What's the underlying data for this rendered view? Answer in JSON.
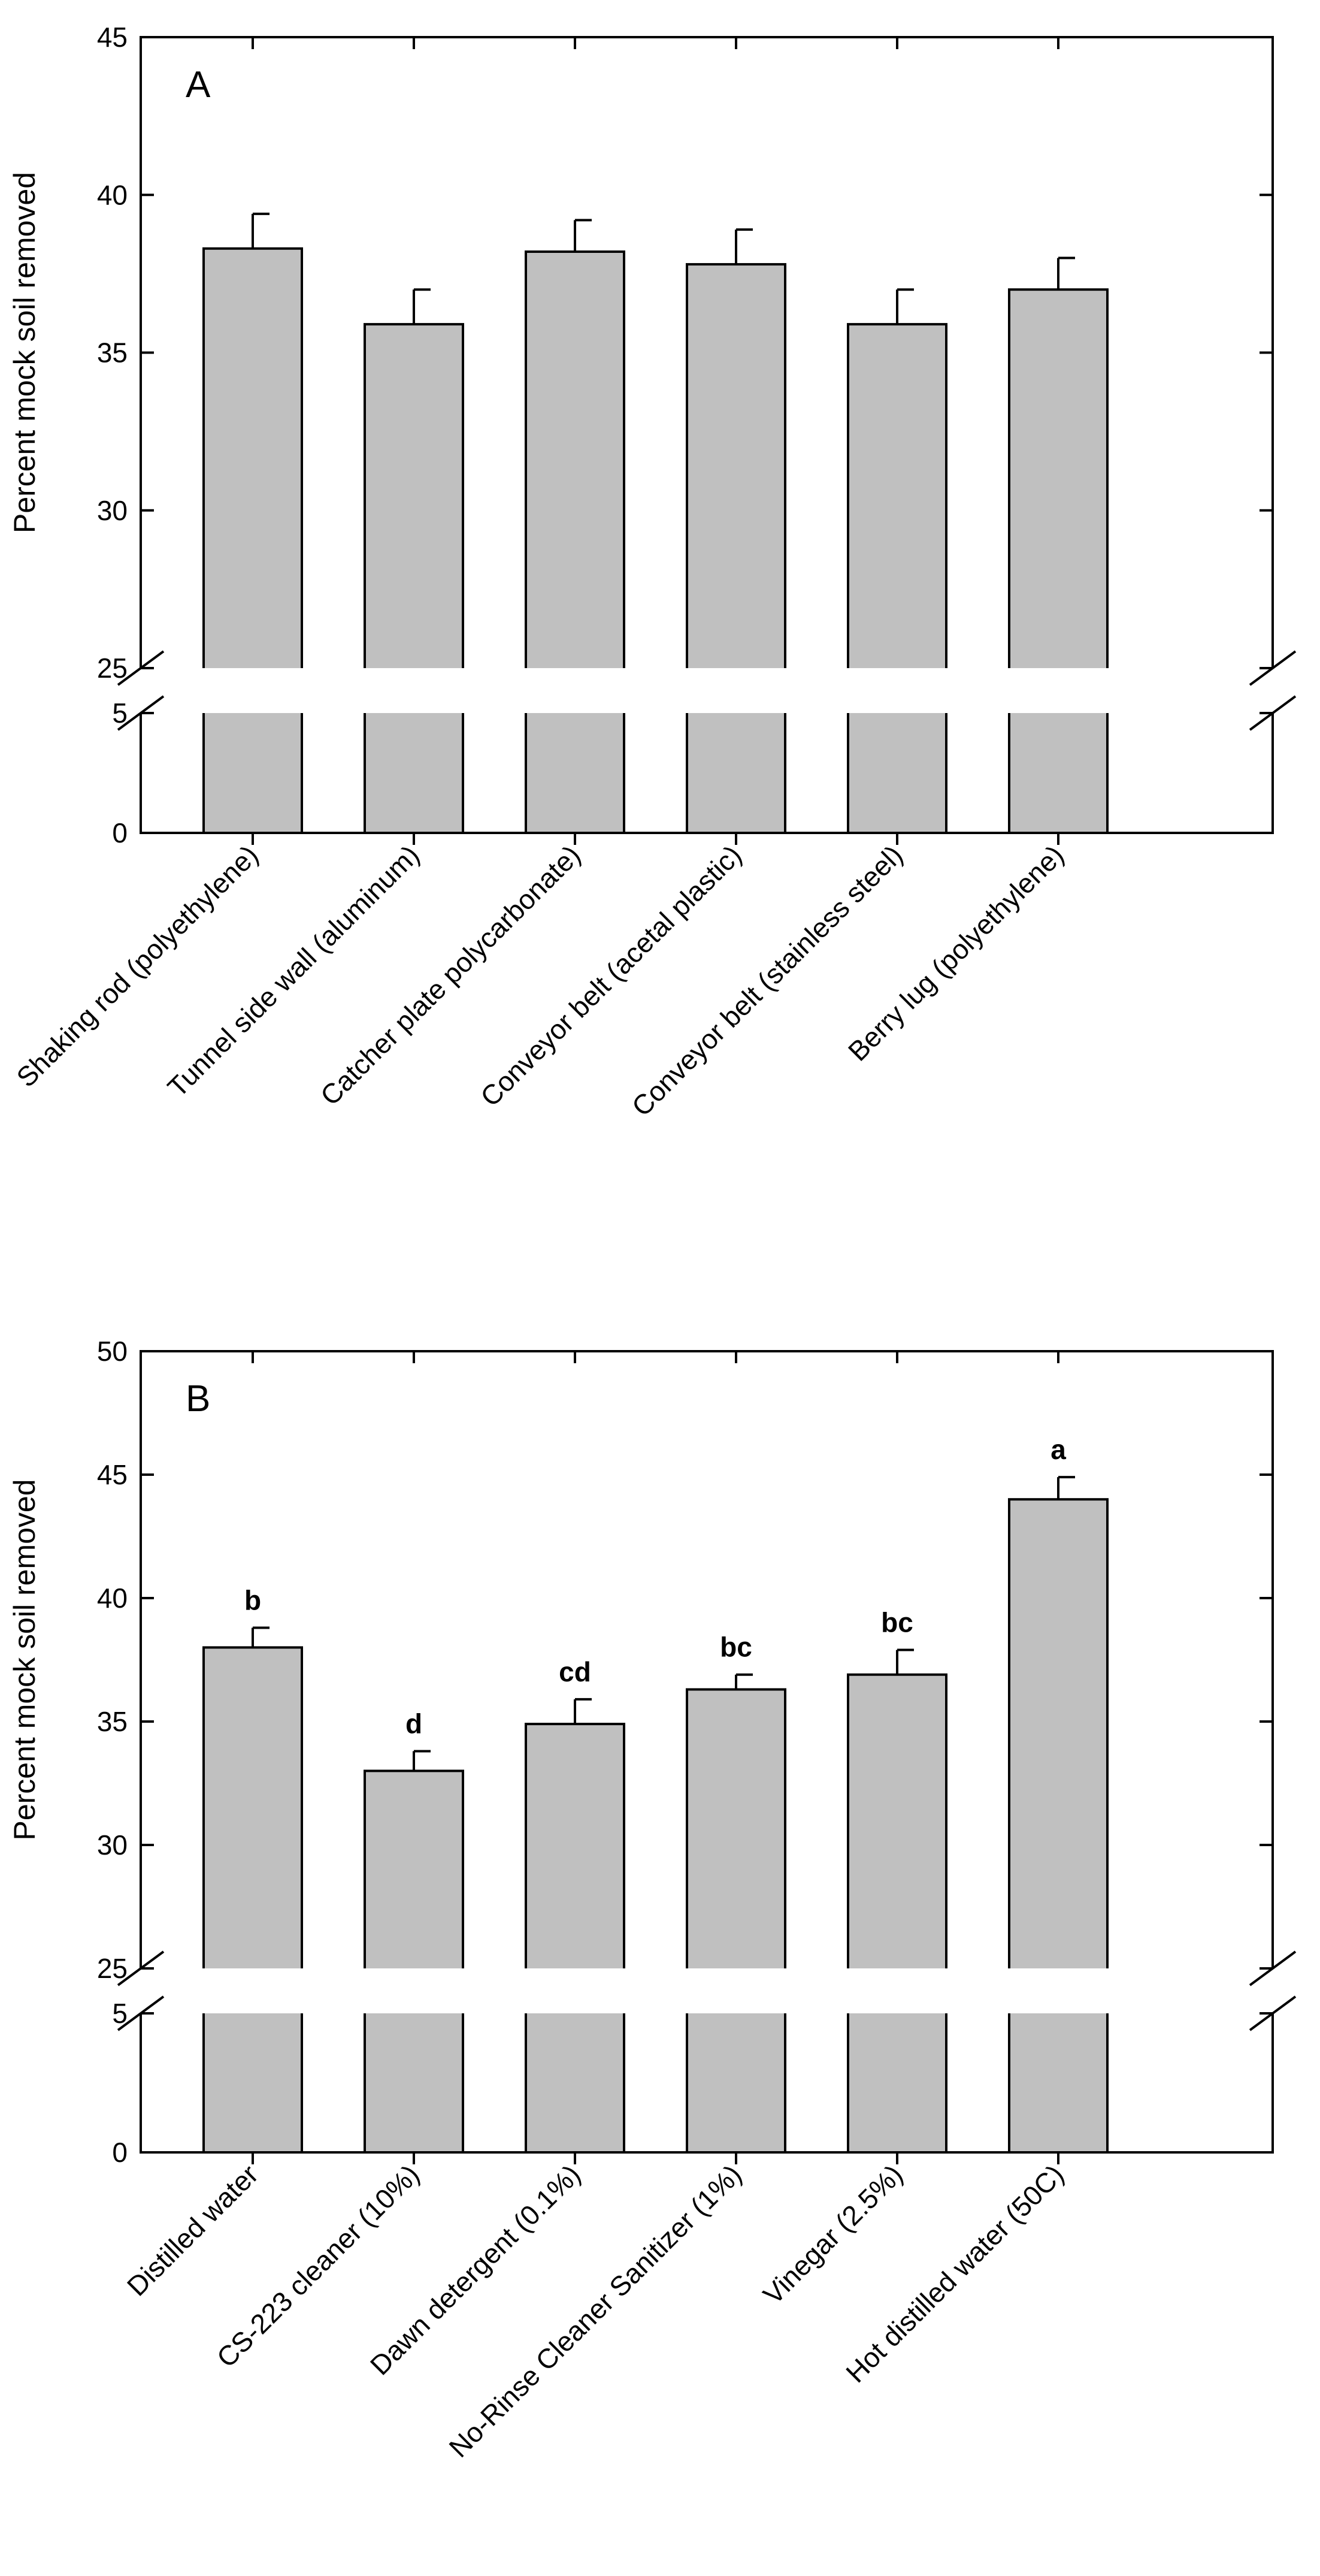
{
  "chart_data": [
    {
      "type": "bar",
      "panel": "A",
      "ylabel": "Percent mock soil removed",
      "xlabel": "",
      "axis_break": {
        "lower": [
          0,
          5
        ],
        "upper": [
          25,
          45
        ]
      },
      "upper_ticks": [
        25,
        30,
        35,
        40,
        45
      ],
      "lower_ticks": [
        0,
        5
      ],
      "tick_labels_upper": [
        "25",
        "30",
        "35",
        "40",
        "45"
      ],
      "tick_labels_lower": [
        "0",
        "5"
      ],
      "categories": [
        "Shaking rod (polyethylene)",
        "Tunnel side wall (aluminum)",
        "Catcher plate polycarbonate)",
        "Conveyor belt (acetal plastic)",
        "Conveyor belt (stainless steel)",
        "Berry lug (polyethylene)"
      ],
      "values": [
        38.3,
        35.9,
        38.2,
        37.8,
        35.9,
        37.0
      ],
      "errors": [
        1.1,
        1.1,
        1.0,
        1.1,
        1.1,
        1.0
      ],
      "sig_letters": []
    },
    {
      "type": "bar",
      "panel": "B",
      "ylabel": "Percent mock soil removed",
      "xlabel": "",
      "axis_break": {
        "lower": [
          0,
          5
        ],
        "upper": [
          25,
          50
        ]
      },
      "upper_ticks": [
        25,
        30,
        35,
        40,
        45,
        50
      ],
      "lower_ticks": [
        0,
        5
      ],
      "tick_labels_upper": [
        "25",
        "30",
        "35",
        "40",
        "45",
        "50"
      ],
      "tick_labels_lower": [
        "0",
        "5"
      ],
      "categories": [
        "Distilled water",
        "CS-223 cleaner (10%)",
        "Dawn detergent (0.1%)",
        "No-Rinse Cleaner Sanitizer (1%)",
        "Vinegar (2.5%)",
        "Hot distilled water (50C)"
      ],
      "values": [
        38.0,
        33.0,
        34.9,
        36.3,
        36.9,
        44.0
      ],
      "errors": [
        0.8,
        0.8,
        1.0,
        0.6,
        1.0,
        0.9
      ],
      "sig_letters": [
        "b",
        "d",
        "cd",
        "bc",
        "bc",
        "a"
      ]
    }
  ]
}
